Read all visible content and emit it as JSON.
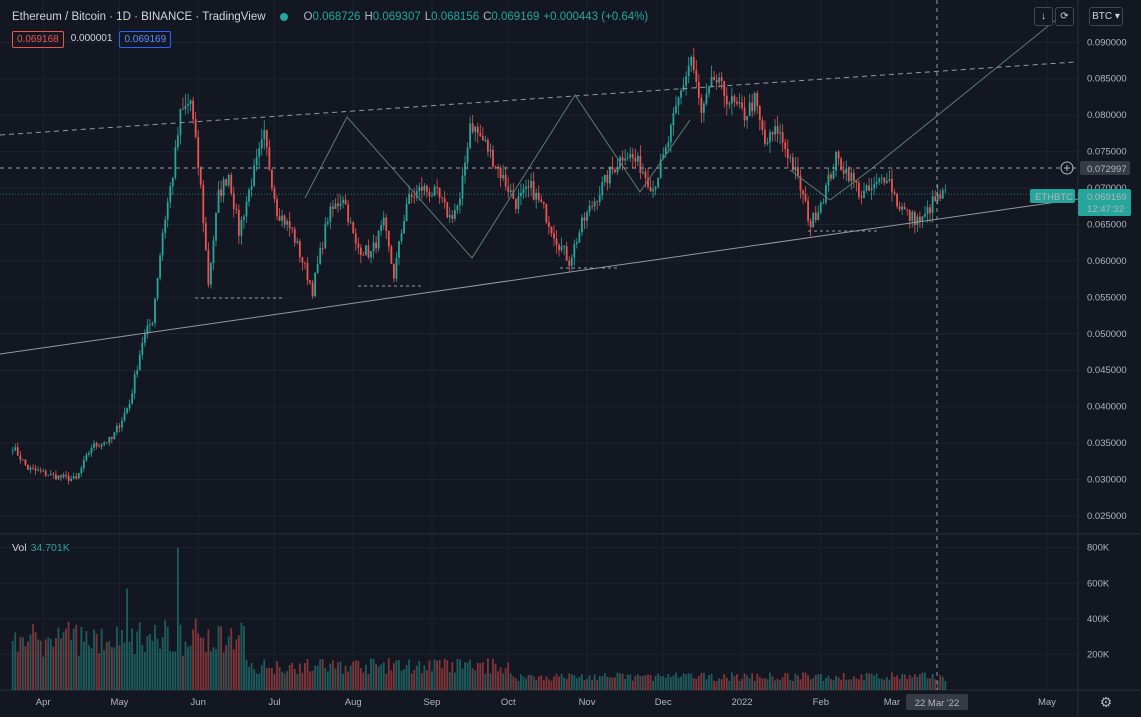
{
  "header": {
    "symbol": "Ethereum / Bitcoin · 1D · BINANCE · TradingView",
    "o_label": "O",
    "o": "0.068726",
    "h_label": "H",
    "h": "0.069307",
    "l_label": "L",
    "l": "0.068156",
    "c_label": "C",
    "c": "0.069169",
    "change": "+0.000443 (+0.64%)"
  },
  "quote_boxes": {
    "bid": "0.069168",
    "spread": "0.000001",
    "ask": "0.069169"
  },
  "toolbar": {
    "down_icon": "arrow-down-icon",
    "refresh_icon": "refresh-icon",
    "currency": "BTC"
  },
  "volume": {
    "label": "Vol",
    "value": "34.701K"
  },
  "labels": {
    "cross_price": "0.072997",
    "symbol_tag": "ETHBTC",
    "last_price": "0.069169",
    "countdown": "12:47:32",
    "cross_date": "22 Mar '22"
  },
  "colors": {
    "up": "#26a69a",
    "down": "#ef5350",
    "bg": "#131722",
    "grid": "#1e222d",
    "line": "#9598a1"
  },
  "chart_data": {
    "type": "candlestick",
    "title": "Ethereum / Bitcoin",
    "x_ticks": [
      "Apr",
      "May",
      "Jun",
      "Jul",
      "Aug",
      "Sep",
      "Oct",
      "Nov",
      "Dec",
      "2022",
      "Feb",
      "Mar",
      "22 Mar '22",
      "May"
    ],
    "y_ticks": [
      "0.025000",
      "0.030000",
      "0.035000",
      "0.040000",
      "0.045000",
      "0.050000",
      "0.055000",
      "0.060000",
      "0.065000",
      "0.070000",
      "0.075000",
      "0.080000",
      "0.085000",
      "0.090000"
    ],
    "ylim": [
      0.0228,
      0.0958
    ],
    "vol_ticks": [
      "200K",
      "400K",
      "600K",
      "800K"
    ],
    "vol_ylim": [
      0,
      860000
    ],
    "series_close_path": [
      [
        "2021-03-20",
        0.0345
      ],
      [
        "2021-03-26",
        0.0315
      ],
      [
        "2021-04-05",
        0.0305
      ],
      [
        "2021-04-14",
        0.03
      ],
      [
        "2021-04-20",
        0.0345
      ],
      [
        "2021-04-28",
        0.0355
      ],
      [
        "2021-05-05",
        0.0405
      ],
      [
        "2021-05-10",
        0.049
      ],
      [
        "2021-05-14",
        0.052
      ],
      [
        "2021-05-18",
        0.064
      ],
      [
        "2021-05-22",
        0.072
      ],
      [
        "2021-05-25",
        0.08
      ],
      [
        "2021-05-29",
        0.082
      ],
      [
        "2021-06-02",
        0.07
      ],
      [
        "2021-06-05",
        0.057
      ],
      [
        "2021-06-09",
        0.069
      ],
      [
        "2021-06-13",
        0.072
      ],
      [
        "2021-06-17",
        0.064
      ],
      [
        "2021-06-22",
        0.071
      ],
      [
        "2021-06-27",
        0.077
      ],
      [
        "2021-07-02",
        0.067
      ],
      [
        "2021-07-08",
        0.064
      ],
      [
        "2021-07-12",
        0.06
      ],
      [
        "2021-07-16",
        0.056
      ],
      [
        "2021-07-22",
        0.066
      ],
      [
        "2021-07-28",
        0.069
      ],
      [
        "2021-08-02",
        0.062
      ],
      [
        "2021-08-08",
        0.061
      ],
      [
        "2021-08-13",
        0.065
      ],
      [
        "2021-08-17",
        0.058
      ],
      [
        "2021-08-22",
        0.068
      ],
      [
        "2021-08-28",
        0.07
      ],
      [
        "2021-09-03",
        0.069
      ],
      [
        "2021-09-08",
        0.066
      ],
      [
        "2021-09-12",
        0.068
      ],
      [
        "2021-09-16",
        0.079
      ],
      [
        "2021-09-22",
        0.076
      ],
      [
        "2021-09-28",
        0.072
      ],
      [
        "2021-10-04",
        0.068
      ],
      [
        "2021-10-10",
        0.07
      ],
      [
        "2021-10-15",
        0.067
      ],
      [
        "2021-10-20",
        0.063
      ],
      [
        "2021-10-25",
        0.06
      ],
      [
        "2021-10-30",
        0.065
      ],
      [
        "2021-11-05",
        0.069
      ],
      [
        "2021-11-10",
        0.072
      ],
      [
        "2021-11-16",
        0.075
      ],
      [
        "2021-11-22",
        0.073
      ],
      [
        "2021-11-27",
        0.07
      ],
      [
        "2021-12-02",
        0.075
      ],
      [
        "2021-12-07",
        0.082
      ],
      [
        "2021-12-12",
        0.088
      ],
      [
        "2021-12-16",
        0.08
      ],
      [
        "2021-12-21",
        0.085
      ],
      [
        "2021-12-27",
        0.082
      ],
      [
        "2022-01-02",
        0.08
      ],
      [
        "2022-01-06",
        0.082
      ],
      [
        "2022-01-10",
        0.076
      ],
      [
        "2022-01-15",
        0.078
      ],
      [
        "2022-01-20",
        0.074
      ],
      [
        "2022-01-24",
        0.07
      ],
      [
        "2022-01-28",
        0.065
      ],
      [
        "2022-02-02",
        0.069
      ],
      [
        "2022-02-07",
        0.074
      ],
      [
        "2022-02-12",
        0.072
      ],
      [
        "2022-02-17",
        0.069
      ],
      [
        "2022-02-22",
        0.07
      ],
      [
        "2022-02-27",
        0.072
      ],
      [
        "2022-03-03",
        0.068
      ],
      [
        "2022-03-08",
        0.066
      ],
      [
        "2022-03-13",
        0.0655
      ],
      [
        "2022-03-17",
        0.068
      ],
      [
        "2022-03-22",
        0.069169
      ]
    ]
  }
}
